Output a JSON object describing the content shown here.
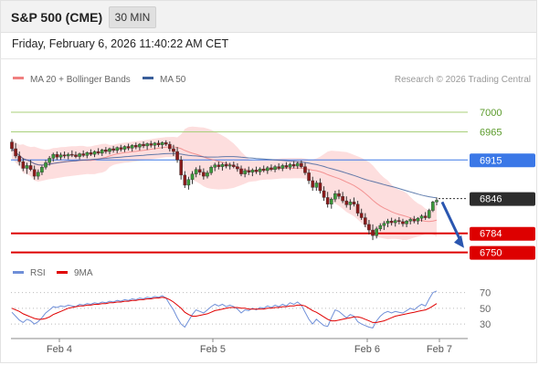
{
  "header": {
    "title": "S&P 500 (CME)",
    "timeframe": "30 MIN",
    "datetime": "Friday, February 6, 2026 11:40:22 AM CET"
  },
  "legend": {
    "ma20_bb": {
      "label": "MA 20 + Bollinger Bands",
      "color": "#f08080"
    },
    "ma50": {
      "label": "MA 50",
      "color": "#3a5e9a"
    },
    "research": "Research © 2026 Trading Central"
  },
  "rsi_legend": {
    "rsi": {
      "label": "RSI",
      "color": "#6f8fd8"
    },
    "ma9": {
      "label": "9MA",
      "color": "#e00000"
    }
  },
  "chart_data": [
    {
      "type": "candlestick",
      "title": "S&P 500 (CME)",
      "x_ticks": [
        "Feb 4",
        "Feb 5",
        "Feb 6",
        "Feb 7"
      ],
      "ylim": [
        6738,
        7018
      ],
      "levels": [
        {
          "value": 7000,
          "label": "7000",
          "style": "green-line"
        },
        {
          "value": 6965,
          "label": "6965",
          "style": "green-line"
        },
        {
          "value": 6915,
          "label": "6915",
          "style": "blue-line"
        },
        {
          "value": 6846,
          "label": "6846",
          "style": "current-price"
        },
        {
          "value": 6784,
          "label": "6784",
          "style": "red-line"
        },
        {
          "value": 6750,
          "label": "6750",
          "style": "red-line"
        }
      ],
      "colors": {
        "up": "#3a9a3a",
        "down": "#8b1a1a",
        "bands": "#fcd3d3",
        "ma20": "#f08080",
        "ma50": "#3a5e9a"
      },
      "forecast_arrow": {
        "from": 6840,
        "to": 6758,
        "color": "#2a56b0"
      },
      "candles": [
        [
          6947,
          6952,
          6930,
          6935
        ],
        [
          6935,
          6945,
          6918,
          6922
        ],
        [
          6922,
          6930,
          6905,
          6912
        ],
        [
          6912,
          6918,
          6895,
          6900
        ],
        [
          6900,
          6910,
          6890,
          6905
        ],
        [
          6905,
          6915,
          6895,
          6898
        ],
        [
          6898,
          6905,
          6880,
          6886
        ],
        [
          6886,
          6898,
          6880,
          6893
        ],
        [
          6893,
          6905,
          6888,
          6902
        ],
        [
          6902,
          6915,
          6898,
          6910
        ],
        [
          6910,
          6922,
          6905,
          6918
        ],
        [
          6918,
          6928,
          6912,
          6925
        ],
        [
          6925,
          6930,
          6915,
          6920
        ],
        [
          6920,
          6928,
          6915,
          6924
        ],
        [
          6924,
          6930,
          6918,
          6922
        ],
        [
          6922,
          6928,
          6916,
          6925
        ],
        [
          6925,
          6932,
          6920,
          6924
        ],
        [
          6924,
          6930,
          6918,
          6921
        ],
        [
          6921,
          6928,
          6916,
          6926
        ],
        [
          6926,
          6932,
          6920,
          6923
        ],
        [
          6923,
          6930,
          6918,
          6928
        ],
        [
          6928,
          6934,
          6922,
          6925
        ],
        [
          6925,
          6932,
          6920,
          6930
        ],
        [
          6930,
          6936,
          6924,
          6927
        ],
        [
          6927,
          6935,
          6922,
          6933
        ],
        [
          6933,
          6938,
          6926,
          6930
        ],
        [
          6930,
          6937,
          6925,
          6935
        ],
        [
          6935,
          6940,
          6928,
          6932
        ],
        [
          6932,
          6939,
          6927,
          6937
        ],
        [
          6937,
          6942,
          6930,
          6934
        ],
        [
          6934,
          6941,
          6929,
          6939
        ],
        [
          6939,
          6944,
          6932,
          6936
        ],
        [
          6936,
          6943,
          6930,
          6941
        ],
        [
          6941,
          6946,
          6934,
          6938
        ],
        [
          6938,
          6945,
          6932,
          6943
        ],
        [
          6943,
          6948,
          6936,
          6940
        ],
        [
          6940,
          6946,
          6933,
          6944
        ],
        [
          6944,
          6949,
          6937,
          6941
        ],
        [
          6941,
          6947,
          6934,
          6945
        ],
        [
          6945,
          6950,
          6938,
          6942
        ],
        [
          6942,
          6948,
          6935,
          6946
        ],
        [
          6946,
          6950,
          6940,
          6943
        ],
        [
          6943,
          6948,
          6930,
          6935
        ],
        [
          6935,
          6942,
          6922,
          6930
        ],
        [
          6930,
          6938,
          6910,
          6915
        ],
        [
          6915,
          6922,
          6880,
          6888
        ],
        [
          6888,
          6895,
          6865,
          6870
        ],
        [
          6870,
          6885,
          6862,
          6880
        ],
        [
          6880,
          6895,
          6872,
          6890
        ],
        [
          6890,
          6902,
          6884,
          6898
        ],
        [
          6898,
          6905,
          6888,
          6893
        ],
        [
          6893,
          6900,
          6880,
          6886
        ],
        [
          6886,
          6896,
          6882,
          6892
        ],
        [
          6892,
          6905,
          6888,
          6902
        ],
        [
          6902,
          6910,
          6895,
          6906
        ],
        [
          6906,
          6912,
          6898,
          6903
        ],
        [
          6903,
          6910,
          6896,
          6907
        ],
        [
          6907,
          6912,
          6900,
          6904
        ],
        [
          6904,
          6910,
          6898,
          6906
        ],
        [
          6906,
          6912,
          6900,
          6903
        ],
        [
          6903,
          6909,
          6894,
          6899
        ],
        [
          6899,
          6905,
          6886,
          6890
        ],
        [
          6890,
          6900,
          6884,
          6896
        ],
        [
          6896,
          6903,
          6888,
          6893
        ],
        [
          6893,
          6900,
          6886,
          6897
        ],
        [
          6897,
          6903,
          6890,
          6894
        ],
        [
          6894,
          6902,
          6888,
          6899
        ],
        [
          6899,
          6905,
          6893,
          6896
        ],
        [
          6896,
          6904,
          6890,
          6901
        ],
        [
          6901,
          6907,
          6895,
          6898
        ],
        [
          6898,
          6906,
          6893,
          6903
        ],
        [
          6903,
          6909,
          6897,
          6900
        ],
        [
          6900,
          6908,
          6895,
          6905
        ],
        [
          6905,
          6911,
          6899,
          6902
        ],
        [
          6902,
          6910,
          6897,
          6907
        ],
        [
          6907,
          6913,
          6900,
          6904
        ],
        [
          6904,
          6912,
          6899,
          6909
        ],
        [
          6909,
          6914,
          6900,
          6903
        ],
        [
          6903,
          6910,
          6888,
          6892
        ],
        [
          6892,
          6898,
          6872,
          6878
        ],
        [
          6878,
          6885,
          6860,
          6866
        ],
        [
          6866,
          6878,
          6860,
          6874
        ],
        [
          6874,
          6882,
          6855,
          6860
        ],
        [
          6860,
          6868,
          6842,
          6848
        ],
        [
          6848,
          6858,
          6830,
          6836
        ],
        [
          6836,
          6848,
          6828,
          6845
        ],
        [
          6845,
          6860,
          6840,
          6855
        ],
        [
          6855,
          6862,
          6845,
          6850
        ],
        [
          6850,
          6858,
          6838,
          6842
        ],
        [
          6842,
          6850,
          6830,
          6835
        ],
        [
          6835,
          6845,
          6826,
          6840
        ],
        [
          6840,
          6848,
          6832,
          6836
        ],
        [
          6836,
          6842,
          6815,
          6820
        ],
        [
          6820,
          6828,
          6808,
          6812
        ],
        [
          6812,
          6820,
          6795,
          6800
        ],
        [
          6800,
          6808,
          6782,
          6790
        ],
        [
          6790,
          6800,
          6772,
          6780
        ],
        [
          6780,
          6796,
          6775,
          6792
        ],
        [
          6792,
          6802,
          6788,
          6798
        ],
        [
          6798,
          6806,
          6790,
          6802
        ],
        [
          6802,
          6810,
          6795,
          6806
        ],
        [
          6806,
          6812,
          6798,
          6803
        ],
        [
          6803,
          6810,
          6796,
          6807
        ],
        [
          6807,
          6813,
          6800,
          6805
        ],
        [
          6805,
          6810,
          6796,
          6801
        ],
        [
          6801,
          6808,
          6795,
          6806
        ],
        [
          6806,
          6812,
          6800,
          6809
        ],
        [
          6809,
          6815,
          6802,
          6806
        ],
        [
          6806,
          6813,
          6800,
          6811
        ],
        [
          6811,
          6818,
          6805,
          6815
        ],
        [
          6815,
          6822,
          6808,
          6812
        ],
        [
          6812,
          6828,
          6810,
          6825
        ],
        [
          6825,
          6842,
          6822,
          6840
        ],
        [
          6840,
          6848,
          6834,
          6843
        ]
      ]
    },
    {
      "type": "line",
      "title": "RSI",
      "x_ticks": [
        "Feb 4",
        "Feb 5",
        "Feb 6",
        "Feb 7"
      ],
      "ylim": [
        15,
        80
      ],
      "yticks": [
        30,
        50,
        70
      ],
      "series": [
        {
          "name": "RSI",
          "color": "#6f8fd8",
          "values": [
            45,
            40,
            35,
            32,
            36,
            34,
            30,
            33,
            38,
            44,
            48,
            52,
            51,
            53,
            52,
            54,
            53,
            52,
            55,
            54,
            56,
            55,
            57,
            56,
            58,
            57,
            59,
            58,
            60,
            59,
            61,
            60,
            62,
            61,
            63,
            62,
            64,
            63,
            65,
            64,
            66,
            63,
            55,
            48,
            38,
            30,
            26,
            34,
            42,
            48,
            46,
            44,
            48,
            52,
            55,
            53,
            55,
            52,
            54,
            52,
            49,
            44,
            48,
            47,
            50,
            48,
            51,
            50,
            53,
            51,
            54,
            52,
            55,
            53,
            57,
            55,
            58,
            54,
            45,
            36,
            30,
            36,
            32,
            28,
            27,
            38,
            48,
            46,
            42,
            38,
            42,
            40,
            33,
            30,
            28,
            26,
            25,
            34,
            40,
            44,
            46,
            44,
            46,
            45,
            44,
            47,
            50,
            48,
            52,
            55,
            53,
            62,
            70,
            72
          ]
        },
        {
          "name": "9MA",
          "color": "#e00000",
          "values": [
            50,
            48,
            46,
            43,
            41,
            39,
            37,
            36,
            36,
            37,
            39,
            42,
            44,
            46,
            48,
            50,
            51,
            52,
            53,
            53,
            54,
            54,
            55,
            55,
            56,
            56,
            57,
            57,
            58,
            58,
            59,
            59,
            60,
            60,
            61,
            61,
            62,
            62,
            63,
            63,
            64,
            63,
            61,
            58,
            54,
            50,
            45,
            42,
            40,
            40,
            41,
            42,
            43,
            45,
            47,
            48,
            49,
            50,
            51,
            51,
            51,
            50,
            50,
            49,
            49,
            49,
            49,
            49,
            50,
            50,
            51,
            51,
            52,
            52,
            53,
            53,
            54,
            54,
            53,
            50,
            47,
            45,
            42,
            39,
            36,
            34,
            34,
            35,
            36,
            37,
            38,
            39,
            39,
            38,
            36,
            34,
            32,
            32,
            33,
            34,
            36,
            38,
            40,
            41,
            42,
            43,
            44,
            45,
            46,
            47,
            48,
            50,
            53,
            56
          ]
        }
      ]
    }
  ]
}
